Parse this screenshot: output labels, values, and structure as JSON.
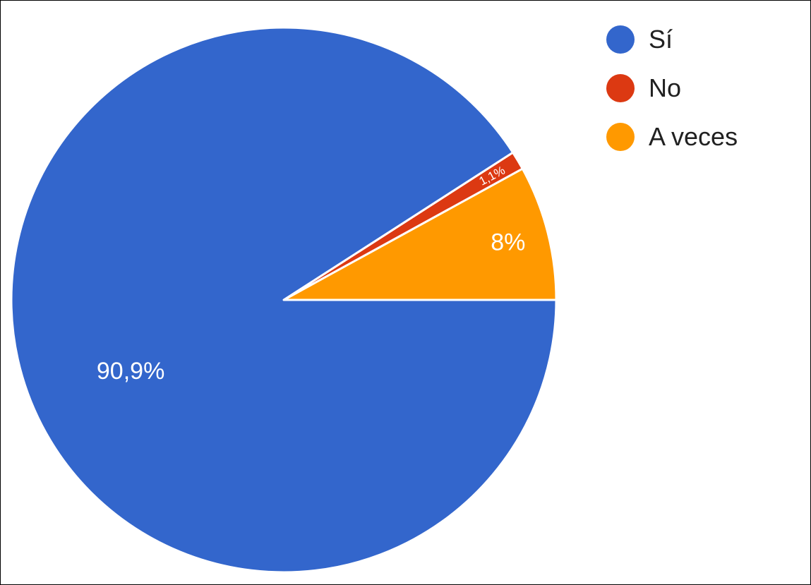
{
  "chart_data": {
    "type": "pie",
    "categories": [
      "Sí",
      "No",
      "A veces"
    ],
    "values": [
      90.9,
      1.1,
      8.0
    ],
    "labels": [
      "90,9%",
      "1,1%",
      "8%"
    ],
    "colors": [
      "#3366CC",
      "#DC3912",
      "#FF9900"
    ],
    "legend_position": "top-right",
    "start_angle": "east, counter-clockwise order: A veces, No, Sí"
  },
  "legend": {
    "items": [
      {
        "label": "Sí",
        "color": "#3366CC"
      },
      {
        "label": "No",
        "color": "#DC3912"
      },
      {
        "label": "A veces",
        "color": "#FF9900"
      }
    ]
  }
}
